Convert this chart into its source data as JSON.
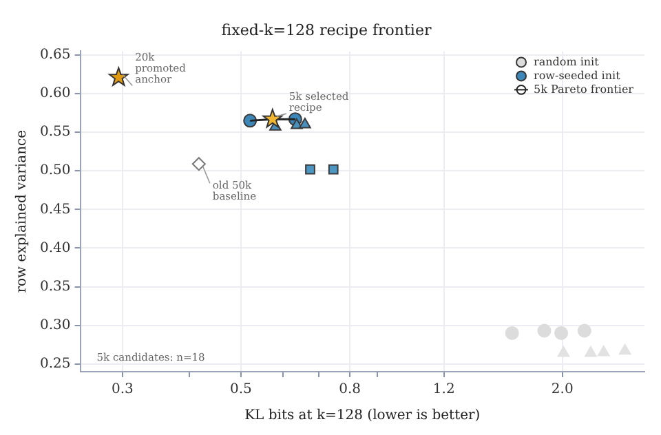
{
  "chart_data": {
    "type": "scatter",
    "title": "fixed-k=128 recipe frontier",
    "xlabel": "KL bits at k=128 (lower is better)",
    "ylabel": "row explained variance",
    "log": "x",
    "grid": true,
    "legend": "top right",
    "xlim": [
      0.25,
      2.85
    ],
    "xticks": [
      0.3,
      {
        "value": 0.4,
        "label": null
      },
      0.5,
      {
        "value": 0.6,
        "label": null
      },
      {
        "value": 0.7,
        "label": null
      },
      0.8,
      {
        "value": 0.9,
        "label": null
      },
      1.2,
      {
        "value": 2,
        "label": "2.0"
      }
    ],
    "ylim": [
      0.24,
      0.655
    ],
    "yticks": [
      0.25,
      {
        "value": 0.3,
        "label": "0.30"
      },
      0.35,
      {
        "value": 0.4,
        "label": "0.40"
      },
      0.45,
      {
        "value": 0.5,
        "label": "0.50"
      },
      0.55,
      {
        "value": 0.6,
        "label": "0.60"
      },
      0.65
    ],
    "series": [
      {
        "type": "scatter",
        "name": "random init",
        "color": "#dcdcdc",
        "marker": "circle",
        "x": [
          1.61,
          1.85,
          1.99,
          2.2
        ],
        "values": [
          0.29,
          0.293,
          0.29,
          0.293
        ]
      },
      {
        "type": "scatter",
        "color": "#e2e2e2",
        "marker": "triangle",
        "x": [
          2.01,
          2.26,
          2.39,
          2.62
        ],
        "values": [
          0.264,
          0.264,
          0.265,
          0.267
        ]
      },
      {
        "type": "scatter",
        "color": "#4c96c4",
        "marker": "square",
        "x": [
          0.674,
          0.745
        ],
        "values": [
          0.502,
          0.502
        ]
      },
      {
        "type": "scatter",
        "color": "#4a90bd",
        "marker": "triangle",
        "x": [
          0.58,
          0.636,
          0.659
        ],
        "values": [
          0.557,
          0.559,
          0.56
        ]
      },
      {
        "type": "line",
        "name": "5k Pareto frontier",
        "color": "#222222",
        "marker": "none",
        "x": [
          0.52,
          0.573,
          0.632
        ],
        "values": [
          0.565,
          0.567,
          0.567
        ]
      },
      {
        "type": "scatter",
        "name": "row-seeded init",
        "color": "#3d87b8",
        "marker": "circle",
        "x": [
          0.52,
          0.632
        ],
        "values": [
          0.565,
          0.567
        ]
      },
      {
        "type": "scatter",
        "color": "#f2b632",
        "marker": "star",
        "x": [
          0.573
        ],
        "values": [
          0.567
        ]
      },
      {
        "type": "scatter",
        "color": "#ffffff",
        "marker": "diamond",
        "x": [
          0.417
        ],
        "values": [
          0.509
        ]
      },
      {
        "type": "scatter",
        "color": "#e09a12",
        "marker": "star",
        "x": [
          0.295
        ],
        "values": [
          0.621
        ]
      }
    ],
    "annotations": [
      {
        "text": "20k promoted anchor",
        "x": 0.295,
        "y": 0.621
      },
      {
        "text": "5k selected recipe",
        "x": 0.573,
        "y": 0.567
      },
      {
        "text": "old 50k baseline",
        "x": 0.417,
        "y": 0.509
      },
      "5k candidates: n=18"
    ]
  }
}
